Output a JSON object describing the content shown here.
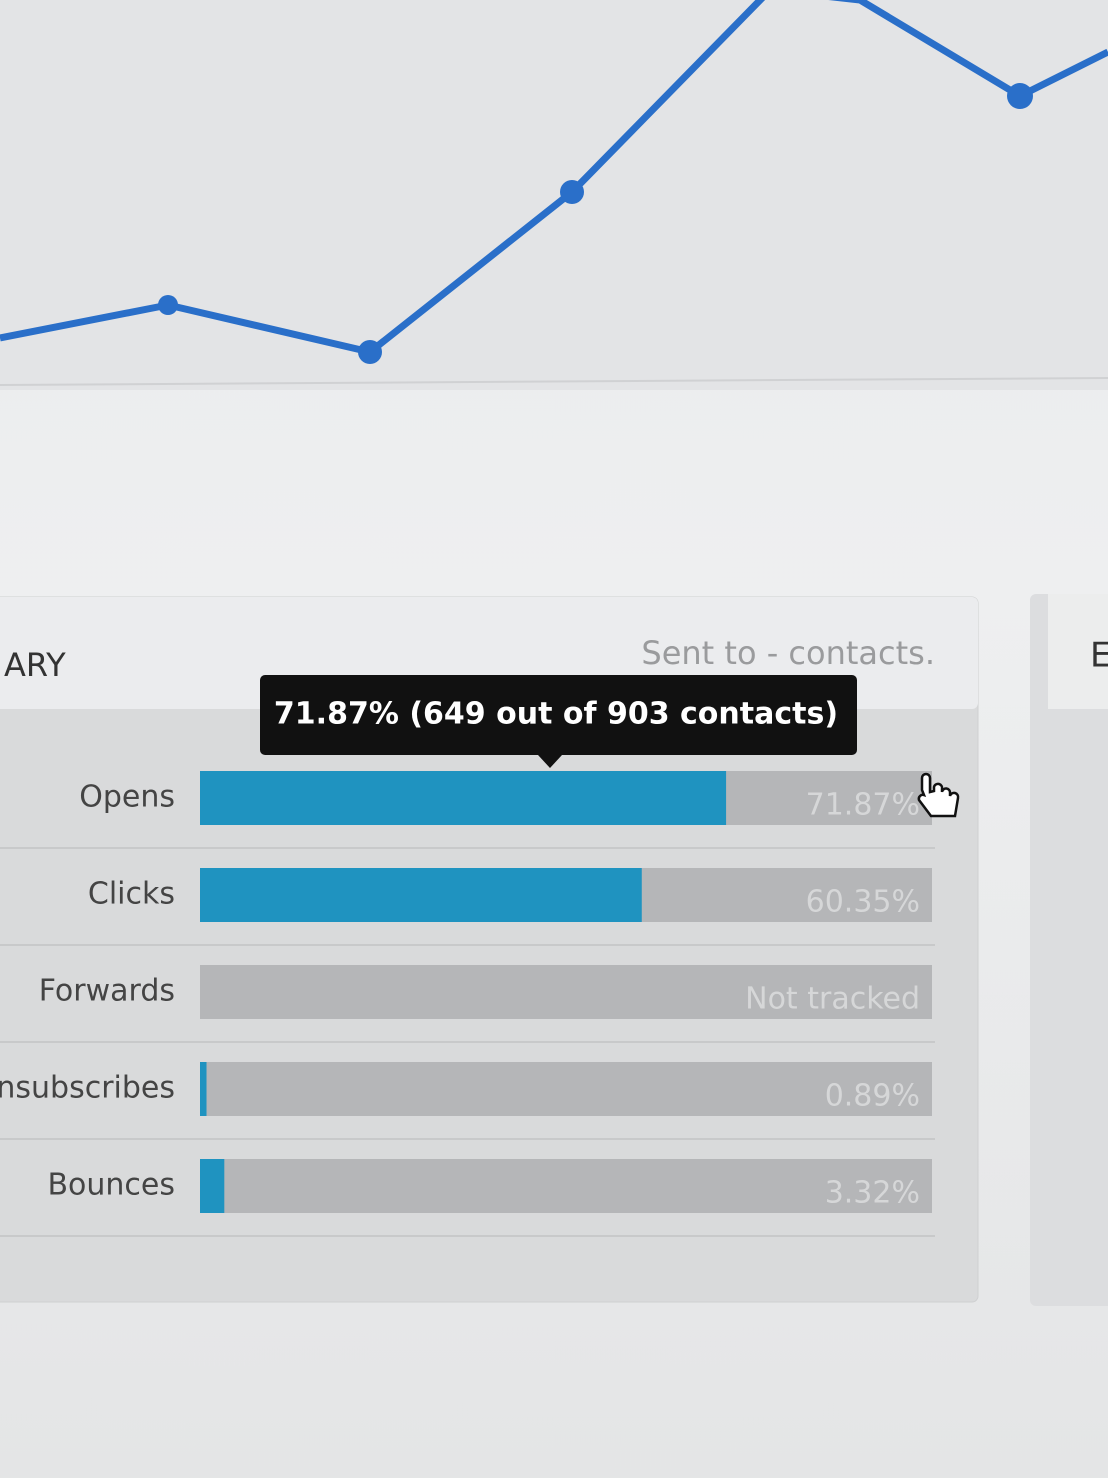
{
  "panel": {
    "title": "ARY",
    "subtitle": "Sent to - contacts.",
    "tooltip": "71.87% (649 out of 903 contacts)",
    "xlim": [
      0,
      100
    ],
    "rows": [
      {
        "name": "Opens",
        "value": 71.87,
        "label": "71.87%"
      },
      {
        "name": "Clicks",
        "value": 60.35,
        "label": "60.35%"
      },
      {
        "name": "Forwards",
        "value": null,
        "label": "Not tracked"
      },
      {
        "name": "Unsubscribes",
        "value": 0.89,
        "label": "0.89%"
      },
      {
        "name": "Bounces",
        "value": 3.32,
        "label": "3.32%"
      }
    ]
  },
  "side_panel": {
    "title": "E"
  }
}
